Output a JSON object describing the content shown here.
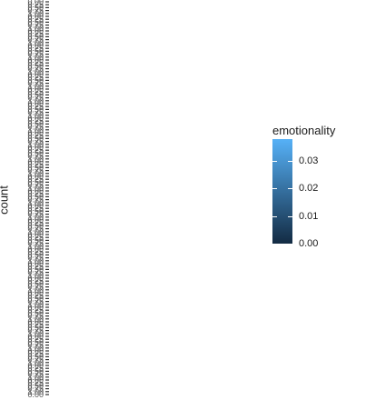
{
  "chart_data": {
    "type": "bar",
    "title": "",
    "xlabel": "",
    "ylabel": "count",
    "y_tick_labels": [
      "0.00",
      "0.25",
      "0.50",
      "0.75",
      "1.00"
    ],
    "ylim": [
      0,
      1
    ],
    "legend": {
      "title": "emotionality",
      "placement": "right",
      "colors": [
        "#132B43",
        "#56B1F7"
      ],
      "breaks": [
        "0.00",
        "0.01",
        "0.02",
        "0.03"
      ],
      "range": [
        0,
        0.038
      ]
    },
    "grid": false
  }
}
